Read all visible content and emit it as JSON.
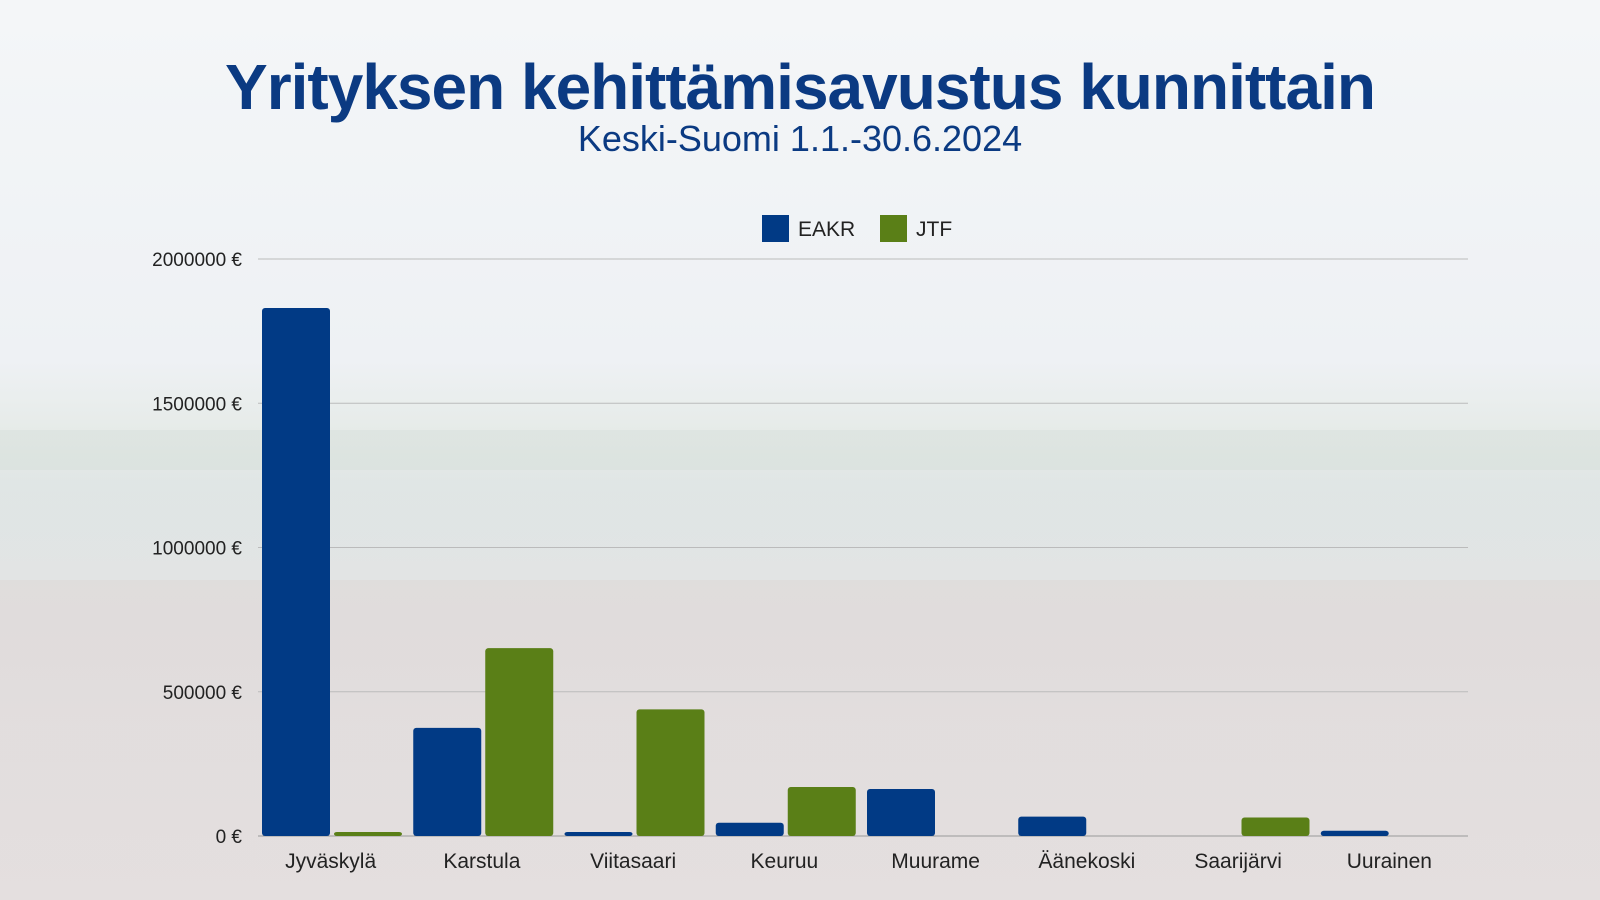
{
  "chart_data": {
    "type": "bar",
    "title": "Yrityksen kehittämisavustus kunnittain",
    "subtitle": "Keski-Suomi 1.1.-30.6.2024",
    "categories": [
      "Jyväskylä",
      "Karstula",
      "Viitasaari",
      "Keuruu",
      "Muurame",
      "Äänekoski",
      "Saarijärvi",
      "Uurainen"
    ],
    "series": [
      {
        "name": "EAKR",
        "color": "#013a85",
        "values": [
          1830000,
          375000,
          14000,
          46000,
          163000,
          67000,
          0,
          18000
        ]
      },
      {
        "name": "JTF",
        "color": "#5a7f17",
        "values": [
          14000,
          651000,
          439000,
          170000,
          0,
          0,
          64000,
          0
        ]
      }
    ],
    "yticks": [
      0,
      500000,
      1000000,
      1500000,
      2000000
    ],
    "ytick_labels": [
      "0 €",
      "500000 €",
      "1000000 €",
      "1500000 €",
      "2000000 €"
    ],
    "ylim": [
      0,
      2000000
    ],
    "grid": true,
    "legend": "top-center"
  }
}
